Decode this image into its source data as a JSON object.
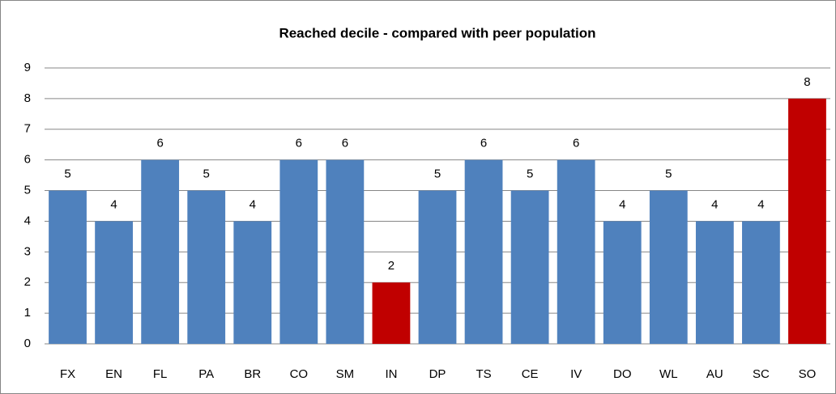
{
  "chart_data": {
    "type": "bar",
    "title": "Reached decile - compared with peer population",
    "categories": [
      "FX",
      "EN",
      "FL",
      "PA",
      "BR",
      "CO",
      "SM",
      "IN",
      "DP",
      "TS",
      "CE",
      "IV",
      "DO",
      "WL",
      "AU",
      "SC",
      "SO"
    ],
    "values": [
      5,
      4,
      6,
      5,
      4,
      6,
      6,
      2,
      5,
      6,
      5,
      6,
      4,
      5,
      4,
      4,
      8
    ],
    "colors": [
      "#4f81bd",
      "#4f81bd",
      "#4f81bd",
      "#4f81bd",
      "#4f81bd",
      "#4f81bd",
      "#4f81bd",
      "#c00000",
      "#4f81bd",
      "#4f81bd",
      "#4f81bd",
      "#4f81bd",
      "#4f81bd",
      "#4f81bd",
      "#4f81bd",
      "#4f81bd",
      "#c00000"
    ],
    "ylim": [
      0,
      9
    ],
    "yticks": [
      0,
      1,
      2,
      3,
      4,
      5,
      6,
      7,
      8,
      9
    ],
    "grid": true
  }
}
